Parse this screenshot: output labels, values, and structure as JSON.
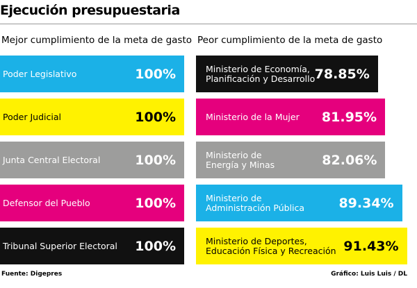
{
  "title": "Ejecución presupuestaria",
  "source": "Fuente: Digepres",
  "credit": "Gráfico: Luis Luis / DL",
  "chart_data": [
    {
      "type": "bar",
      "orientation": "horizontal",
      "title": "Mejor cumplimiento de la meta de gasto",
      "categories": [
        "Poder Legislativo",
        "Poder Judicial",
        "Junta Central Electoral",
        "Defensor del Pueblo",
        "Tribunal Superior Electoral"
      ],
      "values": [
        100,
        100,
        100,
        100,
        100
      ],
      "value_labels": [
        "100%",
        "100%",
        "100%",
        "100%",
        "100%"
      ],
      "colors": [
        "#1bb1e7",
        "#fff200",
        "#9d9d9c",
        "#e5007d",
        "#111111"
      ]
    },
    {
      "type": "bar",
      "orientation": "horizontal",
      "title": "Peor cumplimiento de la meta de gasto",
      "categories": [
        "Ministerio de Economía,\nPlanificación y Desarrollo",
        "Ministerio de la Mujer",
        "Ministerio de\nEnergía y Minas",
        "Ministerio de\nAdministración Pública",
        "Ministerio de Deportes,\nEducación Física y Recreación"
      ],
      "values": [
        78.85,
        81.95,
        82.06,
        89.34,
        91.43
      ],
      "value_labels": [
        "78.85%",
        "81.95%",
        "82.06%",
        "89.34%",
        "91.43%"
      ],
      "colors": [
        "#111111",
        "#e5007d",
        "#9d9d9c",
        "#1bb1e7",
        "#fff200"
      ]
    }
  ]
}
